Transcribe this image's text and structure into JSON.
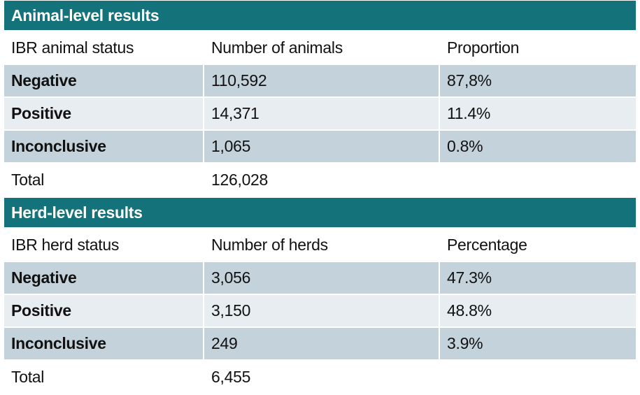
{
  "animal_level": {
    "title": "Animal-level results",
    "headers": [
      "IBR animal status",
      "Number of animals",
      "Proportion"
    ],
    "rows": [
      [
        "Negative",
        "110,592",
        "87,8%"
      ],
      [
        "Positive",
        "14,371",
        "11.4%"
      ],
      [
        "Inconclusive",
        "1,065",
        "0.8%"
      ]
    ],
    "total": {
      "label": "Total",
      "value": "126,028",
      "share": ""
    }
  },
  "herd_level": {
    "title": "Herd-level results",
    "headers": [
      "IBR herd status",
      "Number of herds",
      "Percentage"
    ],
    "rows": [
      [
        "Negative",
        "3,056",
        "47.3%"
      ],
      [
        "Positive",
        "3,150",
        "48.8%"
      ],
      [
        "Inconclusive",
        "249",
        "3.9%"
      ]
    ],
    "total": {
      "label": "Total",
      "value": "6,455",
      "share": ""
    }
  },
  "colors": {
    "header_teal": "#13727a",
    "row_dark": "#c4d2dc",
    "row_light": "#e7edf1"
  }
}
